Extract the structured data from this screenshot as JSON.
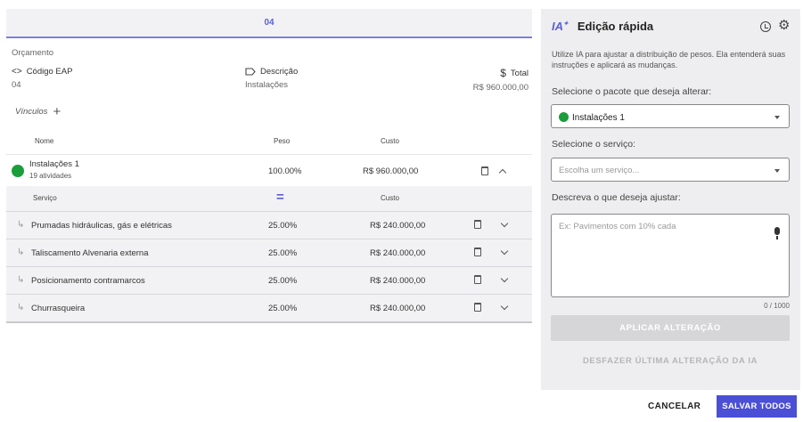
{
  "header": {
    "code": "04"
  },
  "budget": {
    "section_label": "Orçamento",
    "code_label": "Código EAP",
    "code_value": "04",
    "desc_label": "Descrição",
    "desc_value": "Instalações",
    "total_label": "Total",
    "total_value": "R$ 960.000,00"
  },
  "links_label": "Vínculos",
  "table": {
    "headers": {
      "name": "Nome",
      "weight": "Peso",
      "cost": "Custo"
    },
    "package": {
      "name": "Instalações 1",
      "activities": "19 atividades",
      "weight": "100.00%",
      "cost": "R$ 960.000,00",
      "dot_color": "#1a9e3c"
    },
    "sub_headers": {
      "service": "Serviço",
      "cost": "Custo"
    },
    "services": [
      {
        "name": "Prumadas hidráulicas, gás e elétricas",
        "weight": "25.00%",
        "cost": "R$ 240.000,00"
      },
      {
        "name": "Taliscamento Alvenaria externa",
        "weight": "25.00%",
        "cost": "R$ 240.000,00"
      },
      {
        "name": "Posicionamento contramarcos",
        "weight": "25.00%",
        "cost": "R$ 240.000,00"
      },
      {
        "name": "Churrasqueira",
        "weight": "25.00%",
        "cost": "R$ 240.000,00"
      }
    ]
  },
  "ai_panel": {
    "logo": "IA",
    "title": "Edição rápida",
    "description": "Utilize IA para ajustar a distribuição de pesos. Ela entenderá suas instruções e aplicará as mudanças.",
    "package_label": "Selecione o pacote que deseja alterar:",
    "package_value": "Instalações 1",
    "service_label": "Selecione o serviço:",
    "service_placeholder": "Escolha um serviço...",
    "prompt_label": "Descreva o que deseja ajustar:",
    "prompt_placeholder": "Ex: Pavimentos com 10% cada",
    "counter": "0 / 1000",
    "apply_label": "APLICAR ALTERAÇÃO",
    "undo_label": "DESFAZER ÚLTIMA ALTERAÇÃO DA IA"
  },
  "footer": {
    "cancel_label": "CANCELAR",
    "save_label": "SALVAR TODOS"
  },
  "colors": {
    "accent": "#4a4fd6",
    "status_green": "#1a9e3c"
  }
}
